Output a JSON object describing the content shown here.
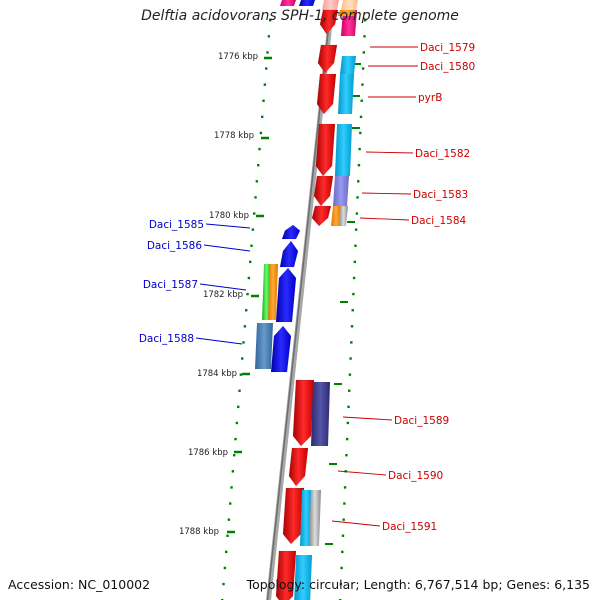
{
  "title": "Delftia acidovorans SPH-1, complete genome",
  "footer": {
    "accession": "Accession: NC_010002",
    "topology": "Topology: circular; Length: 6,767,514 bp; Genes: 6,135"
  },
  "colors": {
    "forward_gene": "#ff0000",
    "reverse_gene": "#0000ff",
    "tick": "#008000",
    "backbone": "#808080",
    "label_forward": "#cc0000",
    "label_reverse": "#0000cc"
  },
  "ticks": [
    {
      "label": "1776 kbp"
    },
    {
      "label": "1778 kbp"
    },
    {
      "label": "1780 kbp"
    },
    {
      "label": "1782 kbp"
    },
    {
      "label": "1784 kbp"
    },
    {
      "label": "1786 kbp"
    },
    {
      "label": "1788 kbp"
    }
  ],
  "genes": [
    {
      "name": "Daci_1579",
      "strand": "forward"
    },
    {
      "name": "Daci_1580",
      "strand": "forward"
    },
    {
      "name": "pyrB",
      "strand": "forward"
    },
    {
      "name": "Daci_1582",
      "strand": "forward"
    },
    {
      "name": "Daci_1583",
      "strand": "forward"
    },
    {
      "name": "Daci_1584",
      "strand": "forward"
    },
    {
      "name": "Daci_1585",
      "strand": "reverse"
    },
    {
      "name": "Daci_1586",
      "strand": "reverse"
    },
    {
      "name": "Daci_1587",
      "strand": "reverse"
    },
    {
      "name": "Daci_1588",
      "strand": "reverse"
    },
    {
      "name": "Daci_1589",
      "strand": "forward"
    },
    {
      "name": "Daci_1590",
      "strand": "forward"
    },
    {
      "name": "Daci_1591",
      "strand": "forward"
    }
  ]
}
